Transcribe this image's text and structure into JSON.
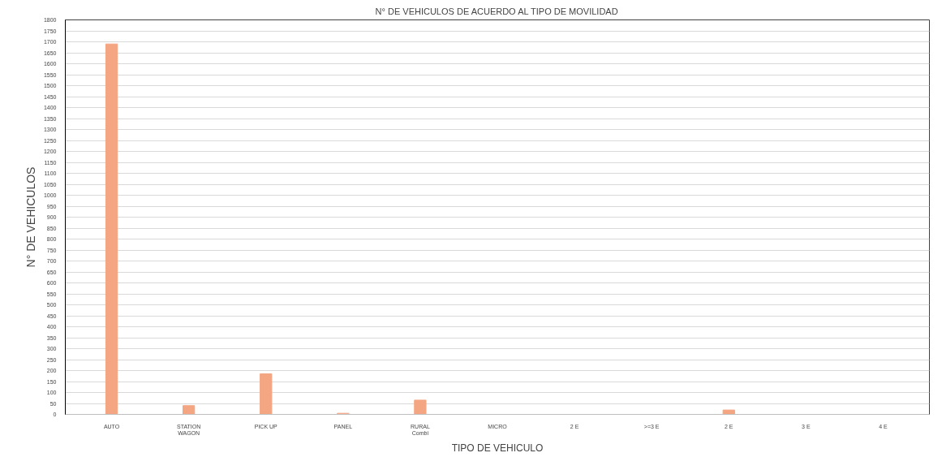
{
  "chart_data": {
    "type": "bar",
    "title": "N° DE VEHICULOS DE ACUERDO AL TIPO DE MOVILIDAD",
    "xlabel": "TIPO DE VEHICULO",
    "ylabel": "N° DE VEHICULOS",
    "categories": [
      "AUTO",
      "STATION\nWAGON",
      "PICK UP",
      "PANEL",
      "RURAL\nCombi",
      "MICRO",
      "2 E",
      ">=3 E",
      "2 E",
      "3 E",
      "4 E"
    ],
    "values": [
      1690,
      40,
      185,
      5,
      65,
      0,
      0,
      0,
      20,
      0,
      0
    ],
    "color": "#f4a582",
    "ylim": [
      0,
      1800
    ],
    "yticks": [
      0,
      50,
      100,
      150,
      200,
      250,
      300,
      350,
      400,
      450,
      500,
      550,
      600,
      650,
      700,
      750,
      800,
      850,
      900,
      950,
      1000,
      1050,
      1100,
      1150,
      1200,
      1250,
      1300,
      1350,
      1400,
      1450,
      1500,
      1550,
      1600,
      1650,
      1700,
      1750,
      1800
    ],
    "grid": "y"
  }
}
